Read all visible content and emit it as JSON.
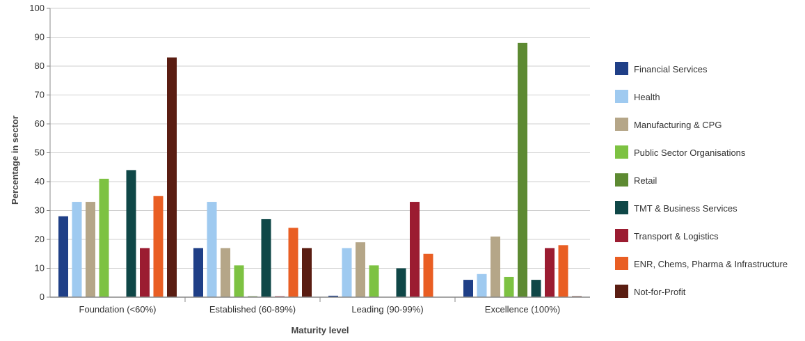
{
  "chart_data": {
    "type": "bar",
    "xlabel": "Maturity level",
    "ylabel": "Percentage in sector",
    "ylim": [
      0,
      100
    ],
    "yticks": [
      0,
      10,
      20,
      30,
      40,
      50,
      60,
      70,
      80,
      90,
      100
    ],
    "grid": true,
    "legend_position": "right",
    "categories": [
      "Foundation (<60%)",
      "Established (60-89%)",
      "Leading (90-99%)",
      "Excellence (100%)"
    ],
    "series": [
      {
        "name": "Financial Services",
        "color": "#1f3f87",
        "values": [
          28,
          17,
          0.5,
          6
        ]
      },
      {
        "name": "Health",
        "color": "#9fcaf0",
        "values": [
          33,
          33,
          17,
          8
        ]
      },
      {
        "name": "Manufacturing & CPG",
        "color": "#b5a688",
        "values": [
          33,
          17,
          19,
          21
        ]
      },
      {
        "name": "Public Sector Organisations",
        "color": "#7dc242",
        "values": [
          41,
          11,
          11,
          7
        ]
      },
      {
        "name": "Retail",
        "color": "#5d8a32",
        "values": [
          0,
          0.3,
          0,
          88
        ]
      },
      {
        "name": "TMT & Business Services",
        "color": "#0f4747",
        "values": [
          44,
          27,
          10,
          6
        ]
      },
      {
        "name": "Transport & Logistics",
        "color": "#9b1c31",
        "values": [
          17,
          0.3,
          33,
          17
        ]
      },
      {
        "name": "ENR, Chems, Pharma & Infrastructure",
        "color": "#e95e23",
        "values": [
          35,
          24,
          15,
          18
        ]
      },
      {
        "name": "Not-for-Profit",
        "color": "#5a1d12",
        "values": [
          83,
          17,
          0,
          0.3
        ]
      }
    ]
  }
}
